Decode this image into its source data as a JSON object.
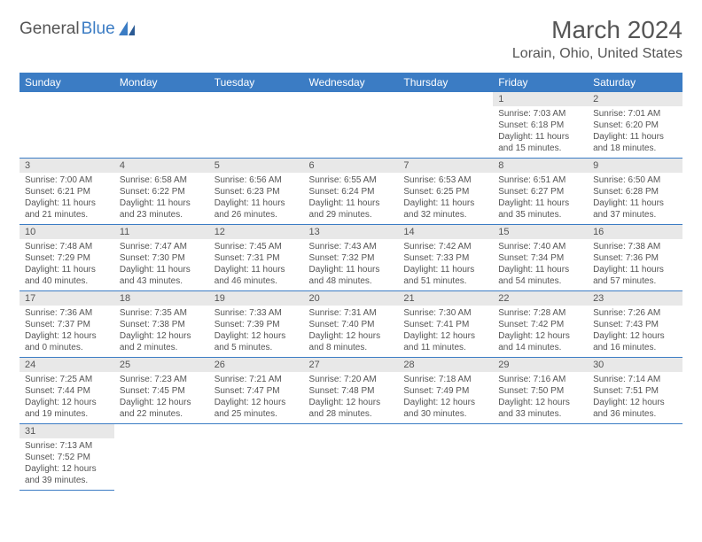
{
  "logo": {
    "part1": "General",
    "part2": "Blue"
  },
  "title": "March 2024",
  "location": "Lorain, Ohio, United States",
  "colors": {
    "header_bg": "#3b7cc4",
    "header_text": "#ffffff",
    "daynum_bg": "#e8e8e8",
    "text": "#555555",
    "accent": "#3b7cc4"
  },
  "weekdays": [
    "Sunday",
    "Monday",
    "Tuesday",
    "Wednesday",
    "Thursday",
    "Friday",
    "Saturday"
  ],
  "weeks": [
    [
      null,
      null,
      null,
      null,
      null,
      {
        "n": "1",
        "sr": "7:03 AM",
        "ss": "6:18 PM",
        "dl": "11 hours and 15 minutes."
      },
      {
        "n": "2",
        "sr": "7:01 AM",
        "ss": "6:20 PM",
        "dl": "11 hours and 18 minutes."
      }
    ],
    [
      {
        "n": "3",
        "sr": "7:00 AM",
        "ss": "6:21 PM",
        "dl": "11 hours and 21 minutes."
      },
      {
        "n": "4",
        "sr": "6:58 AM",
        "ss": "6:22 PM",
        "dl": "11 hours and 23 minutes."
      },
      {
        "n": "5",
        "sr": "6:56 AM",
        "ss": "6:23 PM",
        "dl": "11 hours and 26 minutes."
      },
      {
        "n": "6",
        "sr": "6:55 AM",
        "ss": "6:24 PM",
        "dl": "11 hours and 29 minutes."
      },
      {
        "n": "7",
        "sr": "6:53 AM",
        "ss": "6:25 PM",
        "dl": "11 hours and 32 minutes."
      },
      {
        "n": "8",
        "sr": "6:51 AM",
        "ss": "6:27 PM",
        "dl": "11 hours and 35 minutes."
      },
      {
        "n": "9",
        "sr": "6:50 AM",
        "ss": "6:28 PM",
        "dl": "11 hours and 37 minutes."
      }
    ],
    [
      {
        "n": "10",
        "sr": "7:48 AM",
        "ss": "7:29 PM",
        "dl": "11 hours and 40 minutes."
      },
      {
        "n": "11",
        "sr": "7:47 AM",
        "ss": "7:30 PM",
        "dl": "11 hours and 43 minutes."
      },
      {
        "n": "12",
        "sr": "7:45 AM",
        "ss": "7:31 PM",
        "dl": "11 hours and 46 minutes."
      },
      {
        "n": "13",
        "sr": "7:43 AM",
        "ss": "7:32 PM",
        "dl": "11 hours and 48 minutes."
      },
      {
        "n": "14",
        "sr": "7:42 AM",
        "ss": "7:33 PM",
        "dl": "11 hours and 51 minutes."
      },
      {
        "n": "15",
        "sr": "7:40 AM",
        "ss": "7:34 PM",
        "dl": "11 hours and 54 minutes."
      },
      {
        "n": "16",
        "sr": "7:38 AM",
        "ss": "7:36 PM",
        "dl": "11 hours and 57 minutes."
      }
    ],
    [
      {
        "n": "17",
        "sr": "7:36 AM",
        "ss": "7:37 PM",
        "dl": "12 hours and 0 minutes."
      },
      {
        "n": "18",
        "sr": "7:35 AM",
        "ss": "7:38 PM",
        "dl": "12 hours and 2 minutes."
      },
      {
        "n": "19",
        "sr": "7:33 AM",
        "ss": "7:39 PM",
        "dl": "12 hours and 5 minutes."
      },
      {
        "n": "20",
        "sr": "7:31 AM",
        "ss": "7:40 PM",
        "dl": "12 hours and 8 minutes."
      },
      {
        "n": "21",
        "sr": "7:30 AM",
        "ss": "7:41 PM",
        "dl": "12 hours and 11 minutes."
      },
      {
        "n": "22",
        "sr": "7:28 AM",
        "ss": "7:42 PM",
        "dl": "12 hours and 14 minutes."
      },
      {
        "n": "23",
        "sr": "7:26 AM",
        "ss": "7:43 PM",
        "dl": "12 hours and 16 minutes."
      }
    ],
    [
      {
        "n": "24",
        "sr": "7:25 AM",
        "ss": "7:44 PM",
        "dl": "12 hours and 19 minutes."
      },
      {
        "n": "25",
        "sr": "7:23 AM",
        "ss": "7:45 PM",
        "dl": "12 hours and 22 minutes."
      },
      {
        "n": "26",
        "sr": "7:21 AM",
        "ss": "7:47 PM",
        "dl": "12 hours and 25 minutes."
      },
      {
        "n": "27",
        "sr": "7:20 AM",
        "ss": "7:48 PM",
        "dl": "12 hours and 28 minutes."
      },
      {
        "n": "28",
        "sr": "7:18 AM",
        "ss": "7:49 PM",
        "dl": "12 hours and 30 minutes."
      },
      {
        "n": "29",
        "sr": "7:16 AM",
        "ss": "7:50 PM",
        "dl": "12 hours and 33 minutes."
      },
      {
        "n": "30",
        "sr": "7:14 AM",
        "ss": "7:51 PM",
        "dl": "12 hours and 36 minutes."
      }
    ],
    [
      {
        "n": "31",
        "sr": "7:13 AM",
        "ss": "7:52 PM",
        "dl": "12 hours and 39 minutes."
      },
      null,
      null,
      null,
      null,
      null,
      null
    ]
  ],
  "labels": {
    "sunrise": "Sunrise: ",
    "sunset": "Sunset: ",
    "daylight": "Daylight: "
  }
}
